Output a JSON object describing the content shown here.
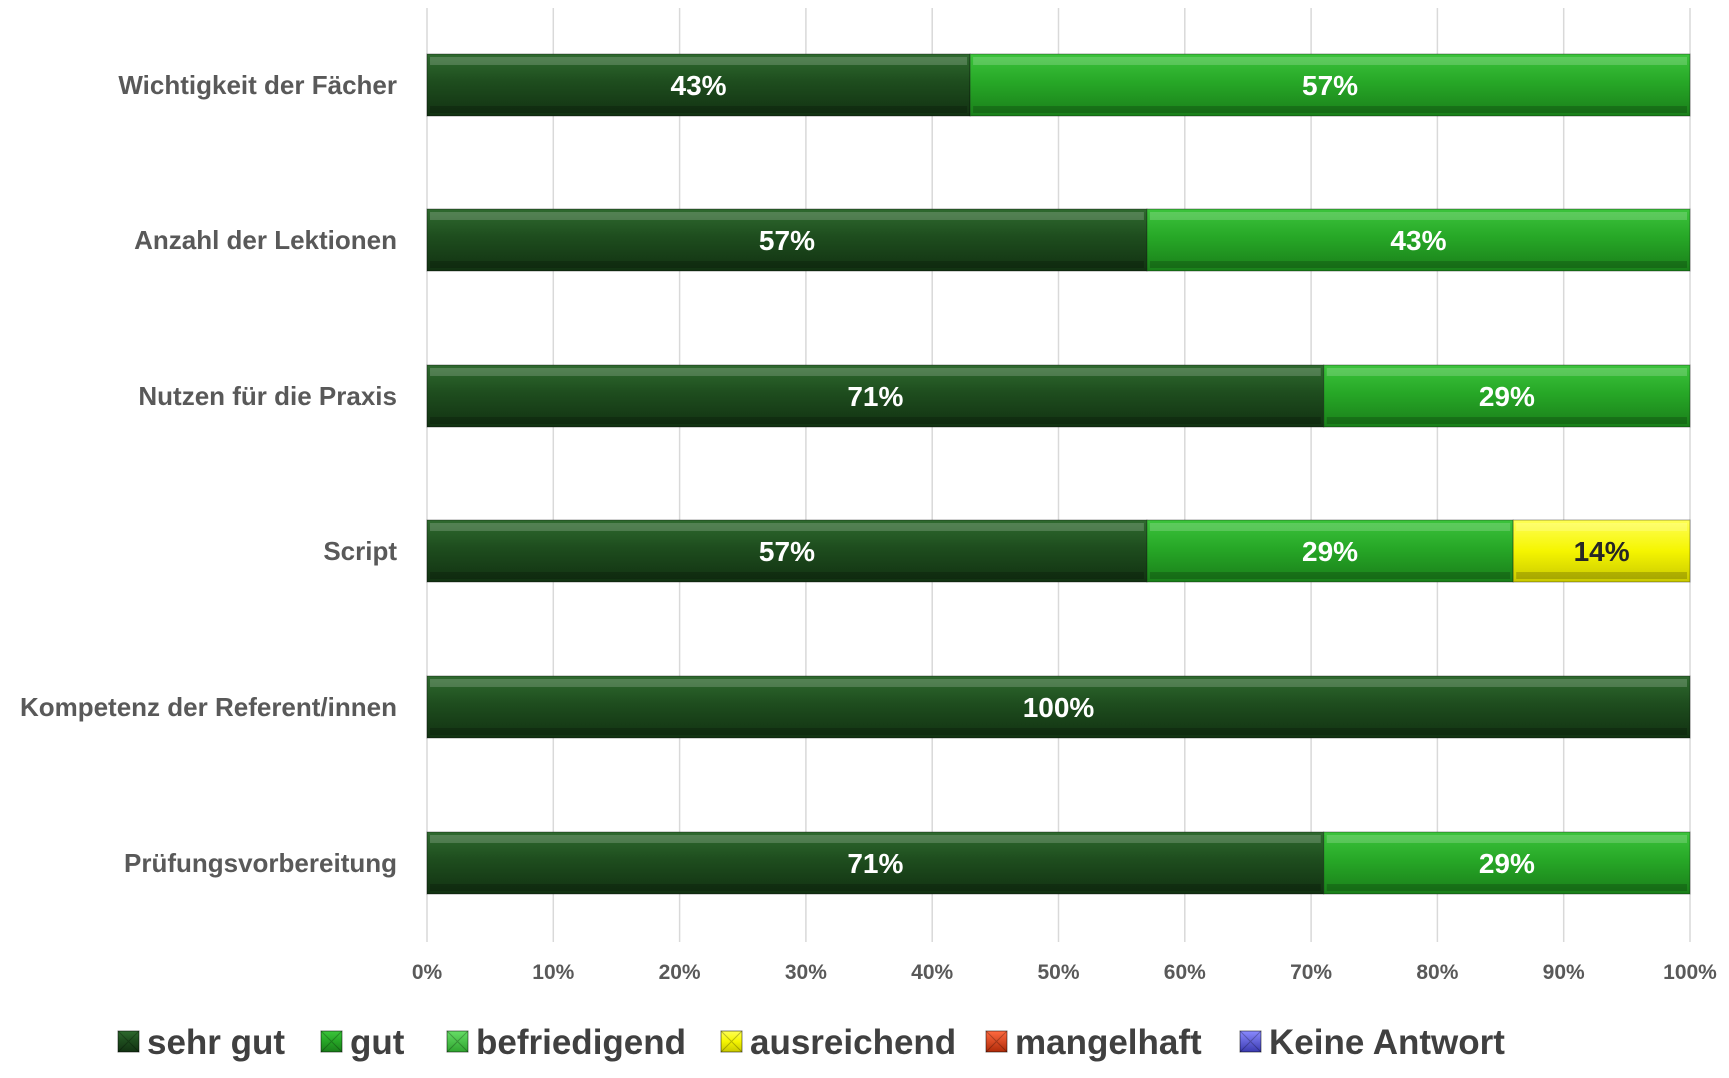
{
  "chart_data": {
    "type": "bar",
    "orientation": "horizontal",
    "stacked": true,
    "categories": [
      "Wichtigkeit der Fächer",
      "Anzahl der Lektionen",
      "Nutzen für die Praxis",
      "Script",
      "Kompetenz der Referent/innen",
      "Prüfungsvorbereitung"
    ],
    "series": [
      {
        "name": "sehr gut",
        "color": "#1e4d1e",
        "values": [
          43,
          57,
          71,
          57,
          100,
          71
        ],
        "labels": [
          "43%",
          "57%",
          "71%",
          "57%",
          "100%",
          "71%"
        ]
      },
      {
        "name": "gut",
        "color": "#1e8a1e",
        "values": [
          57,
          43,
          29,
          29,
          0,
          29
        ],
        "labels": [
          "57%",
          "43%",
          "29%",
          "29%",
          "",
          "29%"
        ]
      },
      {
        "name": "befriedigend",
        "color": "#33bb33",
        "values": [
          0,
          0,
          0,
          0,
          0,
          0
        ],
        "labels": [
          "",
          "",
          "",
          "",
          "",
          ""
        ]
      },
      {
        "name": "ausreichend",
        "color": "#f2f200",
        "values": [
          0,
          0,
          0,
          14,
          0,
          0
        ],
        "labels": [
          "",
          "",
          "",
          "14%",
          "",
          ""
        ]
      },
      {
        "name": "mangelhaft",
        "color": "#e03a10",
        "values": [
          0,
          0,
          0,
          0,
          0,
          0
        ],
        "labels": [
          "",
          "",
          "",
          "",
          "",
          ""
        ]
      },
      {
        "name": "Keine Antwort",
        "color": "#5a5ae0",
        "values": [
          0,
          0,
          0,
          0,
          0,
          0
        ],
        "labels": [
          "",
          "",
          "",
          "",
          "",
          ""
        ]
      }
    ],
    "xlim": [
      0,
      100
    ],
    "x_ticks": [
      "0%",
      "10%",
      "20%",
      "30%",
      "40%",
      "50%",
      "60%",
      "70%",
      "80%",
      "90%",
      "100%"
    ],
    "grid": true,
    "legend_position": "bottom",
    "title": "",
    "xlabel": "",
    "ylabel": ""
  }
}
